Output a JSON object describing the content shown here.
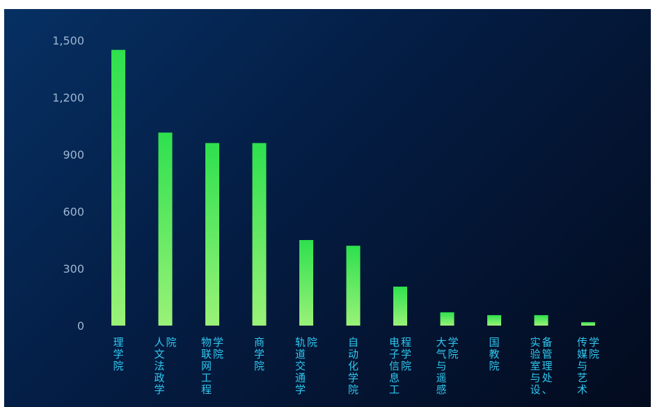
{
  "chart_data": {
    "type": "bar",
    "title": "",
    "xlabel": "",
    "ylabel": "",
    "ylim": [
      0,
      1500
    ],
    "yticks": [
      "0",
      "300",
      "600",
      "900",
      "1,200",
      "1,500"
    ],
    "grid": false,
    "legend": "none",
    "categories": [
      "理学院",
      "人文法政学院",
      "物联网工程学院",
      "商学院",
      "轨道交通学院",
      "自动化学院",
      "电子信息工程学院",
      "大气与遥感学院",
      "国教院",
      "实验室与设备管理处、",
      "传媒与艺术学院"
    ],
    "category_display": [
      [
        "理学院"
      ],
      [
        "人文法政学",
        "院"
      ],
      [
        "物联网工程",
        "学院"
      ],
      [
        "商学院"
      ],
      [
        "轨道交通学",
        "院"
      ],
      [
        "自动化学院"
      ],
      [
        "电子信息工",
        "程学院"
      ],
      [
        "大气与遥感",
        "学院"
      ],
      [
        "国教院"
      ],
      [
        "实验室与设",
        "备管理处、"
      ],
      [
        "传媒与艺术",
        "学院"
      ]
    ],
    "values": [
      1450,
      1015,
      960,
      960,
      450,
      420,
      205,
      70,
      55,
      55,
      18
    ],
    "colors": {
      "bar_top": "#2ee04e",
      "bar_bottom": "#9af278",
      "axis_label": "#9eb6d2",
      "category_label": "#2fc8f0"
    }
  }
}
